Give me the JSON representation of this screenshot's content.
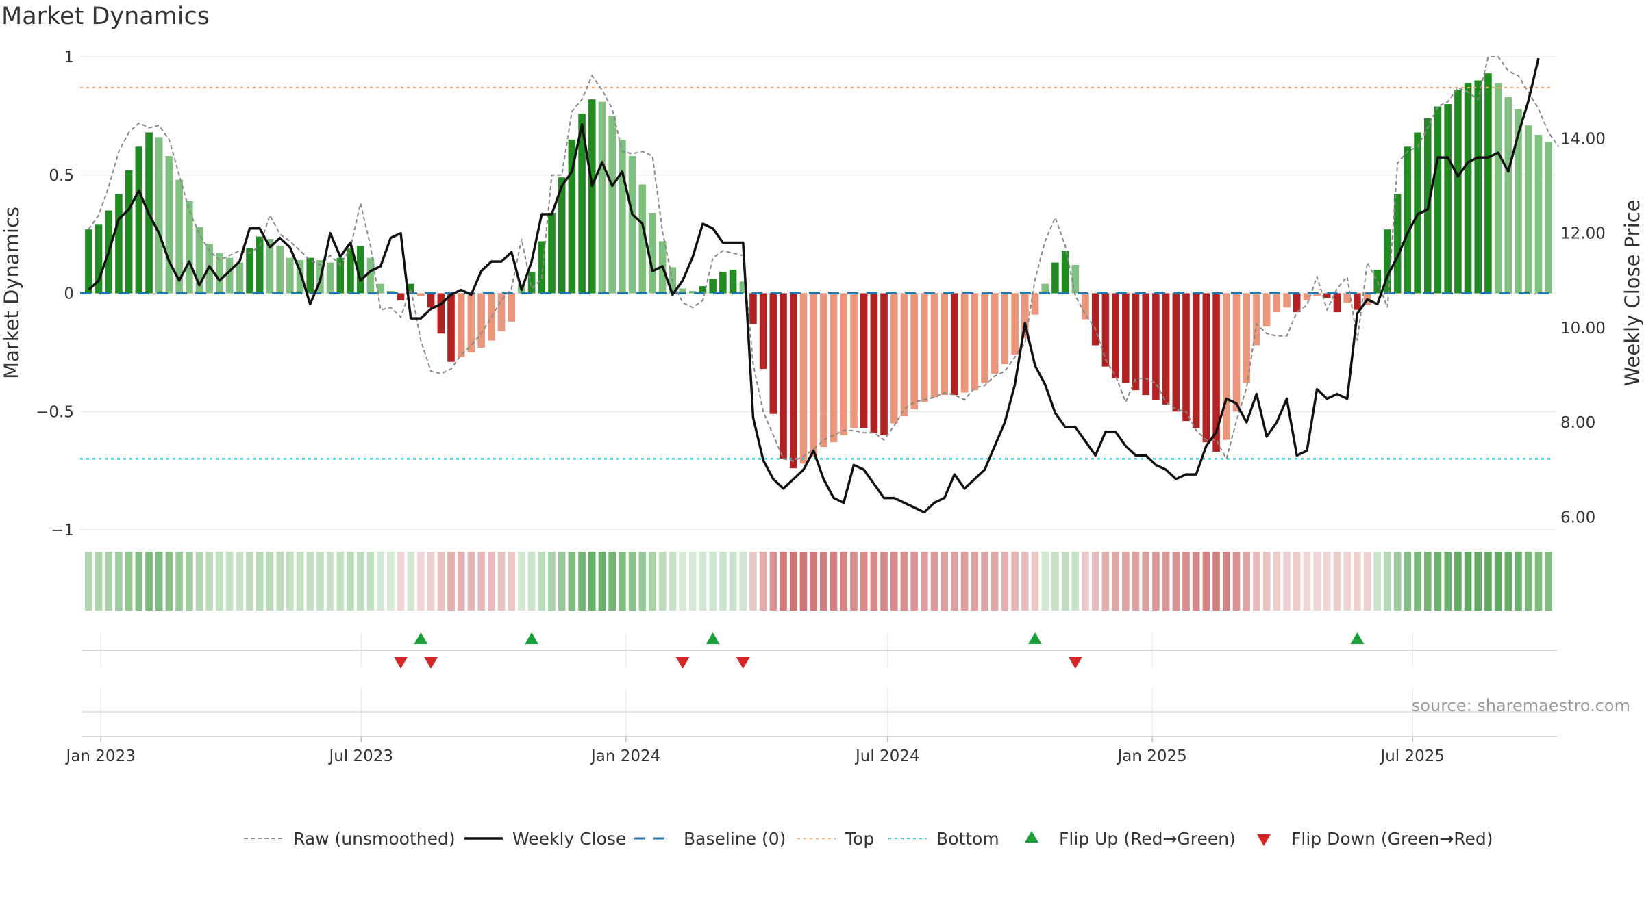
{
  "title": "Market Dynamics",
  "source": "source: sharemaestro.com",
  "chart_data": {
    "type": "bar",
    "x_start": "2022-12-20",
    "x_step_days": 7,
    "xticks": [
      "Jan 2023",
      "Jul 2023",
      "Jan 2024",
      "Jul 2024",
      "Jan 2025",
      "Jul 2025"
    ],
    "xtick_dates": [
      "2023-01-01",
      "2023-07-01",
      "2024-01-01",
      "2024-07-01",
      "2025-01-01",
      "2025-07-01"
    ],
    "left_axis": {
      "label": "Market Dynamics",
      "ylim": [
        -1,
        1
      ],
      "ticks": [
        1,
        0.5,
        0,
        -0.5,
        -1
      ],
      "tick_labels": [
        "1",
        "0.5",
        "0",
        "−0.5",
        "−1"
      ]
    },
    "right_axis": {
      "label": "Weekly Close Price",
      "ylim": [
        5.7,
        15.7
      ],
      "ticks": [
        14,
        12,
        10,
        8,
        6
      ],
      "tick_labels": [
        "14.00",
        "12.00",
        "10.00",
        "8.00",
        "6.00"
      ]
    },
    "top_level": 0.87,
    "bottom_level": -0.7,
    "baseline": 0,
    "series": [
      {
        "name": "Market Dynamics",
        "values": [
          0.27,
          0.29,
          0.35,
          0.42,
          0.52,
          0.62,
          0.68,
          0.66,
          0.58,
          0.48,
          0.39,
          0.28,
          0.21,
          0.17,
          0.15,
          0.13,
          0.19,
          0.24,
          0.23,
          0.2,
          0.15,
          0.14,
          0.15,
          0.14,
          0.13,
          0.15,
          0.19,
          0.2,
          0.15,
          0.04,
          0.01,
          -0.03,
          0.04,
          -0.01,
          -0.06,
          -0.17,
          -0.29,
          -0.27,
          -0.25,
          -0.23,
          -0.2,
          -0.16,
          -0.12,
          0.04,
          0.09,
          0.22,
          0.34,
          0.49,
          0.65,
          0.76,
          0.82,
          0.81,
          0.75,
          0.65,
          0.58,
          0.46,
          0.34,
          0.22,
          0.11,
          0.02,
          0.01,
          0.03,
          0.06,
          0.09,
          0.1,
          0.05,
          -0.13,
          -0.32,
          -0.51,
          -0.7,
          -0.74,
          -0.72,
          -0.69,
          -0.65,
          -0.63,
          -0.6,
          -0.57,
          -0.57,
          -0.59,
          -0.6,
          -0.55,
          -0.52,
          -0.49,
          -0.46,
          -0.44,
          -0.43,
          -0.43,
          -0.42,
          -0.41,
          -0.38,
          -0.34,
          -0.3,
          -0.26,
          -0.19,
          -0.09,
          0.04,
          0.13,
          0.18,
          0.12,
          -0.11,
          -0.22,
          -0.31,
          -0.36,
          -0.38,
          -0.41,
          -0.43,
          -0.45,
          -0.47,
          -0.5,
          -0.54,
          -0.57,
          -0.63,
          -0.67,
          -0.62,
          -0.5,
          -0.38,
          -0.22,
          -0.14,
          -0.08,
          -0.06,
          -0.08,
          -0.03,
          -0.01,
          -0.02,
          -0.08,
          -0.04,
          -0.07,
          -0.05,
          0.1,
          0.27,
          0.42,
          0.62,
          0.68,
          0.74,
          0.79,
          0.8,
          0.86,
          0.89,
          0.9,
          0.93,
          0.89,
          0.83,
          0.78,
          0.71,
          0.67,
          0.64
        ]
      },
      {
        "name": "Raw (unsmoothed)",
        "values": [
          0.27,
          0.33,
          0.45,
          0.6,
          0.68,
          0.72,
          0.7,
          0.71,
          0.65,
          0.5,
          0.35,
          0.25,
          0.18,
          0.14,
          0.16,
          0.18,
          0.17,
          0.2,
          0.33,
          0.25,
          0.22,
          0.18,
          0.14,
          0.12,
          0.16,
          0.12,
          0.19,
          0.38,
          0.2,
          -0.07,
          -0.06,
          -0.1,
          0.02,
          -0.2,
          -0.33,
          -0.34,
          -0.32,
          -0.26,
          -0.22,
          -0.17,
          -0.1,
          -0.03,
          0.02,
          0.23,
          0.02,
          0.06,
          0.5,
          0.5,
          0.77,
          0.82,
          0.92,
          0.86,
          0.78,
          0.6,
          0.59,
          0.6,
          0.58,
          0.26,
          0.05,
          -0.04,
          -0.06,
          -0.03,
          0.15,
          0.18,
          0.17,
          0.16,
          -0.3,
          -0.5,
          -0.6,
          -0.7,
          -0.71,
          -0.69,
          -0.66,
          -0.62,
          -0.6,
          -0.58,
          -0.58,
          -0.59,
          -0.59,
          -0.62,
          -0.56,
          -0.49,
          -0.46,
          -0.45,
          -0.44,
          -0.42,
          -0.43,
          -0.45,
          -0.4,
          -0.39,
          -0.35,
          -0.33,
          -0.27,
          -0.21,
          0.06,
          0.22,
          0.32,
          0.2,
          -0.01,
          -0.09,
          -0.15,
          -0.28,
          -0.35,
          -0.46,
          -0.36,
          -0.36,
          -0.38,
          -0.46,
          -0.49,
          -0.5,
          -0.58,
          -0.62,
          -0.62,
          -0.7,
          -0.54,
          -0.4,
          -0.13,
          -0.17,
          -0.18,
          -0.18,
          -0.08,
          -0.05,
          0.07,
          -0.07,
          0.02,
          0.07,
          -0.2,
          0.13,
          0.05,
          -0.06,
          0.55,
          0.6,
          0.62,
          0.7,
          0.79,
          0.81,
          0.87,
          0.85,
          0.82,
          1.0,
          1.0,
          0.94,
          0.92,
          0.85,
          0.78,
          0.68,
          0.62
        ]
      },
      {
        "name": "Weekly Close",
        "axis": "right",
        "values": [
          10.8,
          11.0,
          11.6,
          12.3,
          12.5,
          12.9,
          12.4,
          12.0,
          11.4,
          11.0,
          11.4,
          10.9,
          11.3,
          11.0,
          11.2,
          11.4,
          12.1,
          12.1,
          11.7,
          11.9,
          11.7,
          11.2,
          10.5,
          11.0,
          12.0,
          11.5,
          11.8,
          11.0,
          11.2,
          11.3,
          11.9,
          12.0,
          10.2,
          10.2,
          10.4,
          10.5,
          10.7,
          10.8,
          10.7,
          11.2,
          11.4,
          11.4,
          11.6,
          10.8,
          11.4,
          12.4,
          12.4,
          13.0,
          13.3,
          14.3,
          13.0,
          13.5,
          13.0,
          13.3,
          12.4,
          12.2,
          11.2,
          11.3,
          10.7,
          11.0,
          11.5,
          12.2,
          12.1,
          11.8,
          11.8,
          11.8,
          8.1,
          7.2,
          6.8,
          6.6,
          6.8,
          7.0,
          7.4,
          6.8,
          6.4,
          6.3,
          7.1,
          7.0,
          6.7,
          6.4,
          6.4,
          6.3,
          6.2,
          6.1,
          6.3,
          6.4,
          6.9,
          6.6,
          6.8,
          7.0,
          7.5,
          8.0,
          8.8,
          10.1,
          9.2,
          8.8,
          8.2,
          7.9,
          7.9,
          7.6,
          7.3,
          7.8,
          7.8,
          7.5,
          7.3,
          7.3,
          7.1,
          7.0,
          6.8,
          6.9,
          6.9,
          7.5,
          7.8,
          8.5,
          8.4,
          8.0,
          8.6,
          7.7,
          8.0,
          8.5,
          7.3,
          7.4,
          8.7,
          8.5,
          8.6,
          8.5,
          10.3,
          10.6,
          10.5,
          11.1,
          11.5,
          12.0,
          12.4,
          12.5,
          13.6,
          13.6,
          13.2,
          13.5,
          13.6,
          13.6,
          13.7,
          13.3,
          14.1,
          14.8,
          15.7
        ]
      }
    ],
    "flip_up_weeks": [
      33,
      44,
      62,
      94,
      126
    ],
    "flip_down_weeks": [
      31,
      34,
      59,
      65,
      98
    ],
    "colors": {
      "green_strong": "#228b22",
      "green_light": "#7fbf7f",
      "red_strong": "#b22222",
      "red_light": "#e9967a",
      "raw": "#888888",
      "close": "#111111",
      "baseline": "#1f77b4",
      "top": "#f4a460",
      "bottom": "#1fc4d4",
      "flip_up": "#1a9e3a",
      "flip_down": "#d62728"
    },
    "legend_position": "bottom-center",
    "legend": [
      {
        "label": "Raw (unsmoothed)",
        "style": "dashed-gray"
      },
      {
        "label": "Weekly Close",
        "style": "solid-black"
      },
      {
        "label": "Baseline (0)",
        "style": "dashed-blue"
      },
      {
        "label": "Top",
        "style": "dotted-orange"
      },
      {
        "label": "Bottom",
        "style": "dotted-cyan"
      },
      {
        "label": "Flip Up (Red→Green)",
        "style": "triangle-up-green"
      },
      {
        "label": "Flip Down (Green→Red)",
        "style": "triangle-down-red"
      }
    ]
  }
}
